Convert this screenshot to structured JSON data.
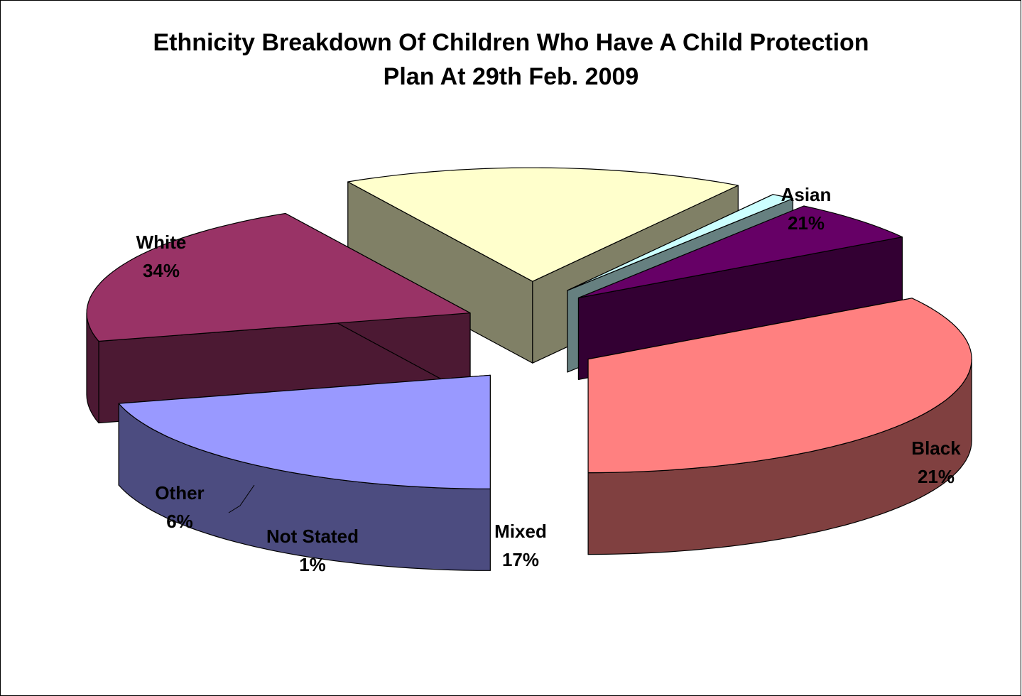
{
  "chart_data": {
    "type": "pie",
    "title": "Ethnicity Breakdown Of Children Who Have A Child Protection Plan At  29th Feb. 2009",
    "title_lines": [
      "Ethnicity Breakdown Of Children Who Have A Child Protection",
      "Plan At  29th Feb. 2009"
    ],
    "style": "3D exploded",
    "slices": [
      {
        "category": "Asian",
        "value": 21,
        "label": "21%",
        "color": "#9999FF",
        "side_color": "#4C4C80"
      },
      {
        "category": "Black",
        "value": 21,
        "label": "21%",
        "color": "#993366",
        "side_color": "#4C1933"
      },
      {
        "category": "Mixed",
        "value": 17,
        "label": "17%",
        "color": "#FFFFCC",
        "side_color": "#808066"
      },
      {
        "category": "Not Stated",
        "value": 1,
        "label": "1%",
        "color": "#CCFFFF",
        "side_color": "#668080"
      },
      {
        "category": "Other",
        "value": 6,
        "label": "6%",
        "color": "#660066",
        "side_color": "#330033"
      },
      {
        "category": "White",
        "value": 34,
        "label": "34%",
        "color": "#FF8080",
        "side_color": "#804040"
      }
    ]
  }
}
